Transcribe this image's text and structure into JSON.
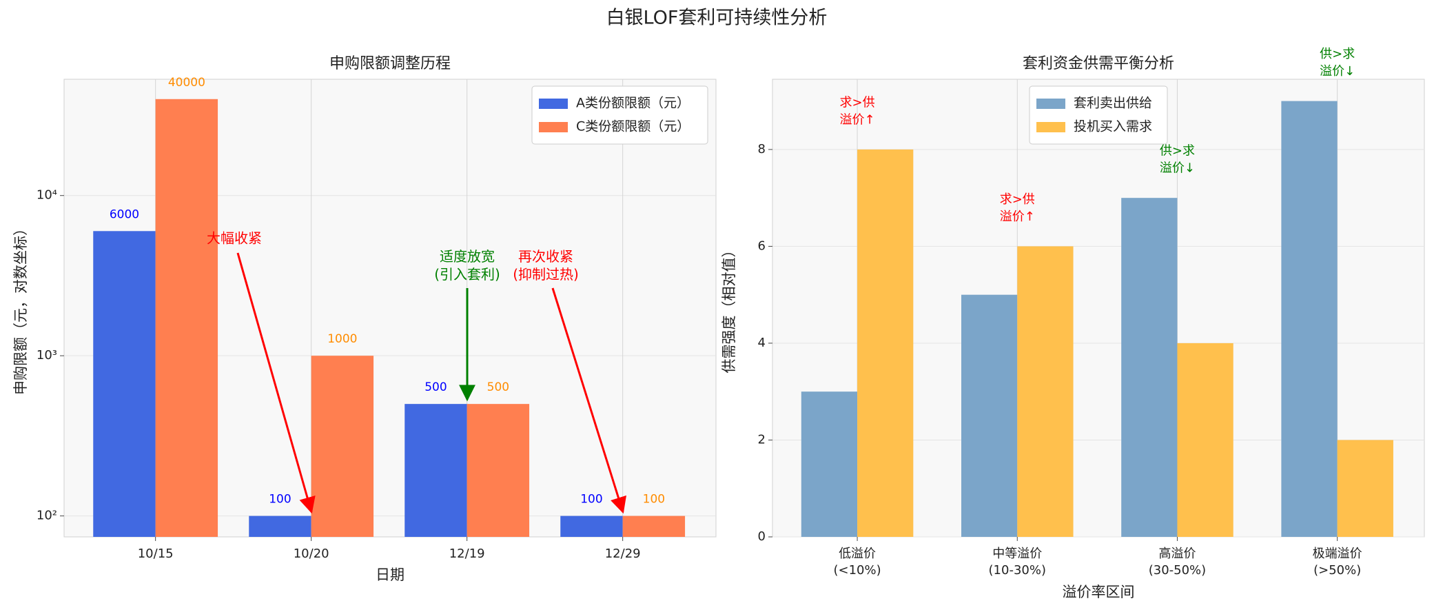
{
  "title": "白银LOF套利可持续性分析",
  "chart_data": [
    {
      "type": "bar",
      "title": "申购限额调整历程",
      "xlabel": "日期",
      "ylabel": "申购限额（元，对数坐标）",
      "categories": [
        "10/15",
        "10/20",
        "12/19",
        "12/29"
      ],
      "series": [
        {
          "name": "A类份额限额（元）",
          "color": "#4169e1",
          "label_color": "#0000ff",
          "values": [
            6000,
            100,
            500,
            100
          ]
        },
        {
          "name": "C类份额限额（元）",
          "color": "#ff7f50",
          "label_color": "#ff8c00",
          "values": [
            40000,
            1000,
            500,
            100
          ]
        }
      ],
      "log_y": true,
      "ylim": [
        74,
        53200
      ],
      "yticks": [
        {
          "value": 100,
          "label": "10²"
        },
        {
          "value": 1000,
          "label": "10³"
        },
        {
          "value": 10000,
          "label": "10⁴"
        }
      ],
      "grid": true,
      "legend": "upper right",
      "annotations": [
        {
          "text": "大幅收紧",
          "color": "#ff0000"
        },
        {
          "text": "适度放宽\n(引入套利)",
          "color": "#008000"
        },
        {
          "text": "再次收紧\n(抑制过热)",
          "color": "#ff0000"
        }
      ]
    },
    {
      "type": "bar",
      "title": "套利资金供需平衡分析",
      "xlabel": "溢价率区间",
      "ylabel": "供需强度（相对值）",
      "categories": [
        "低溢价\n(<10%)",
        "中等溢价\n(10-30%)",
        "高溢价\n(30-50%)",
        "极端溢价\n(>50%)"
      ],
      "series": [
        {
          "name": "套利卖出供给",
          "color": "#7ba5c9",
          "values": [
            3,
            5,
            7,
            9
          ]
        },
        {
          "name": "投机买入需求",
          "color": "#ffc04d",
          "values": [
            8,
            6,
            4,
            2
          ]
        }
      ],
      "log_y": false,
      "ylim": [
        0,
        9.45
      ],
      "yticks": [
        0,
        2,
        4,
        6,
        8
      ],
      "grid": true,
      "legend": "upper center",
      "annotations": [
        {
          "text": "求>供\n溢价↑",
          "color": "#ff0000"
        },
        {
          "text": "求>供\n溢价↑",
          "color": "#ff0000"
        },
        {
          "text": "供>求\n溢价↓",
          "color": "#008000"
        },
        {
          "text": "供>求\n溢价↓",
          "color": "#008000"
        }
      ]
    }
  ]
}
